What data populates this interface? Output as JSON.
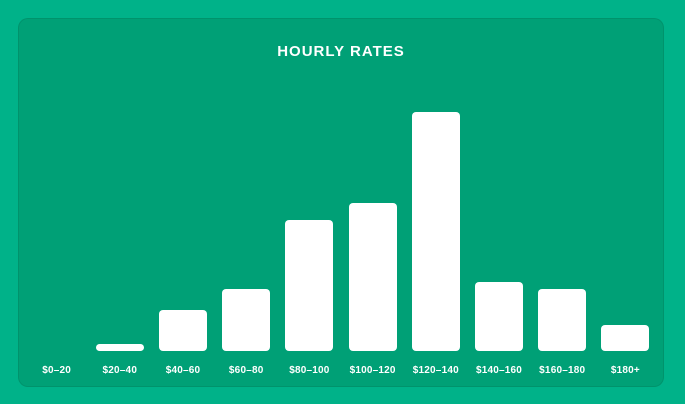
{
  "chart_data": {
    "type": "bar",
    "title": "HOURLY RATES",
    "categories": [
      "$0–20",
      "$20–40",
      "$40–60",
      "$60–80",
      "$80–100",
      "$100–120",
      "$120–140",
      "$140–160",
      "$160–180",
      "$180+"
    ],
    "values": [
      0,
      3,
      17,
      26,
      55,
      62,
      100,
      29,
      26,
      11
    ],
    "value_unit": "relative bar height, tallest bar = 100",
    "xlabel": "",
    "ylabel": "",
    "ylim": [
      0,
      100
    ],
    "y_axis_shown": false,
    "gridlines": false,
    "legend_position": "none",
    "bar_color": "#FFFFFF",
    "label_color": "#FFFFFF"
  },
  "colors": {
    "page_background": "#00B289",
    "card_background": "#00A076",
    "title_text": "#FFFFFF"
  }
}
